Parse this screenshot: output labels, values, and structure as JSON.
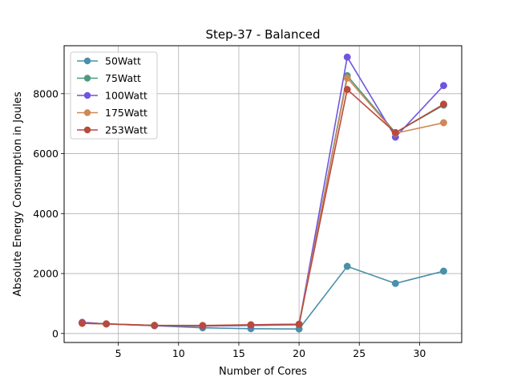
{
  "chart_data": {
    "type": "line",
    "title": "Step-37 - Balanced",
    "xlabel": "Number of Cores",
    "ylabel": "Absolute Energy Consumption in Joules",
    "x": [
      2,
      4,
      8,
      12,
      16,
      20,
      24,
      28,
      32
    ],
    "xlim": [
      0.5,
      33.5
    ],
    "ylim": [
      -300,
      9600
    ],
    "xticks": [
      5,
      10,
      15,
      20,
      25,
      30
    ],
    "yticks": [
      0,
      2000,
      4000,
      6000,
      8000
    ],
    "grid": true,
    "legend_position": "top-left",
    "marker": "circle",
    "series": [
      {
        "name": "50Watt",
        "color": "#4a90a8",
        "values": [
          370,
          320,
          260,
          190,
          160,
          150,
          2240,
          1670,
          2080
        ]
      },
      {
        "name": "75Watt",
        "color": "#4a9a80",
        "values": [
          360,
          320,
          270,
          250,
          270,
          290,
          8600,
          6700,
          7620
        ]
      },
      {
        "name": "100Watt",
        "color": "#7055e0",
        "values": [
          370,
          320,
          260,
          250,
          270,
          300,
          9220,
          6550,
          8270
        ]
      },
      {
        "name": "175Watt",
        "color": "#d08858",
        "values": [
          340,
          320,
          270,
          270,
          290,
          310,
          8520,
          6680,
          7030
        ]
      },
      {
        "name": "253Watt",
        "color": "#b84a3e",
        "values": [
          340,
          320,
          270,
          260,
          290,
          310,
          8140,
          6700,
          7650
        ]
      }
    ]
  }
}
